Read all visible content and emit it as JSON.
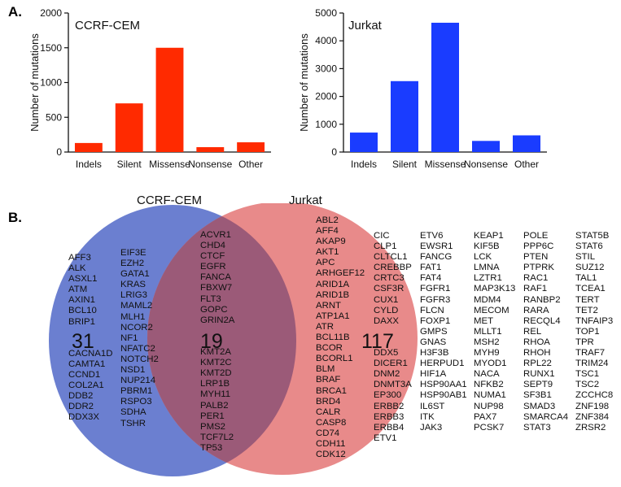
{
  "panel_a_label": "A.",
  "panel_b_label": "B.",
  "chart_data": [
    {
      "type": "bar",
      "title": "CCRF-CEM",
      "xlabel": "",
      "ylabel": "Number of mutations",
      "categories": [
        "Indels",
        "Silent",
        "Missense",
        "Nonsense",
        "Other"
      ],
      "values": [
        130,
        700,
        1500,
        70,
        140
      ],
      "ylim": [
        0,
        2000
      ],
      "yticks": [
        0,
        500,
        1000,
        1500,
        2000
      ],
      "color": "#ff2a00"
    },
    {
      "type": "bar",
      "title": "Jurkat",
      "xlabel": "",
      "ylabel": "Number of mutations",
      "categories": [
        "Indels",
        "Silent",
        "Missense",
        "Nonsense",
        "Other"
      ],
      "values": [
        700,
        2550,
        4650,
        400,
        600
      ],
      "ylim": [
        0,
        5000
      ],
      "yticks": [
        0,
        1000,
        2000,
        3000,
        4000,
        5000
      ],
      "color": "#1a3cff"
    }
  ],
  "venn": {
    "left_title": "CCRF-CEM",
    "right_title": "Jurkat",
    "left_color": "#6b7fd0",
    "right_color": "#e88a8a",
    "overlap_color": "#9b5a78",
    "left_only_count": "31",
    "shared_count": "19",
    "right_only_count": "117",
    "left_only_col1": [
      "AFF3",
      "ALK",
      "ASXL1",
      "ATM",
      "AXIN1",
      "BCL10",
      "BRIP1",
      "",
      "",
      "CACNA1D",
      "CAMTA1",
      "CCND1",
      "COL2A1",
      "DDB2",
      "DDR2",
      "DDX3X"
    ],
    "left_only_col2": [
      "EIF3E",
      "EZH2",
      "GATA1",
      "KRAS",
      "LRIG3",
      "MAML2",
      "MLH1",
      "NCOR2",
      "NF1",
      "NFATC2",
      "NOTCH2",
      "NSD1",
      "NUP214",
      "PBRM1",
      "RSPO3",
      "SDHA",
      "TSHR"
    ],
    "shared_col1": [
      "ACVR1",
      "CHD4",
      "CTCF",
      "EGFR",
      "FANCA",
      "FBXW7",
      "FLT3",
      "GOPC",
      "GRIN2A",
      "",
      "",
      "KMT2A",
      "KMT2C",
      "KMT2D",
      "LRP1B",
      "MYH11",
      "PALB2",
      "PER1",
      "PMS2",
      "TCF7L2",
      "TP53"
    ],
    "right_only_col1": [
      "ABL2",
      "AFF4",
      "AKAP9",
      "AKT1",
      "APC",
      "ARHGEF12",
      "ARID1A",
      "ARID1B",
      "ARNT",
      "ATP1A1",
      "ATR",
      "BCL11B",
      "BCOR",
      "BCORL1",
      "BLM",
      "BRAF",
      "BRCA1",
      "BRD4",
      "CALR",
      "CASP8",
      "CD74",
      "CDH11",
      "CDK12"
    ],
    "right_only_col2": [
      "CIC",
      "CLP1",
      "CLTCL1",
      "CREBBP",
      "CRTC3",
      "CSF3R",
      "CUX1",
      "CYLD",
      "DAXX",
      "",
      "",
      "DDX5",
      "DICER1",
      "DNM2",
      "DNMT3A",
      "EP300",
      "ERBB2",
      "ERBB3",
      "ERBB4",
      "ETV1"
    ],
    "right_only_col3": [
      "ETV6",
      "EWSR1",
      "FANCG",
      "FAT1",
      "FAT4",
      "FGFR1",
      "FGFR3",
      "FLCN",
      "FOXP1",
      "GMPS",
      "GNAS",
      "H3F3B",
      "HERPUD1",
      "HIF1A",
      "HSP90AA1",
      "HSP90AB1",
      "IL6ST",
      "ITK",
      "JAK3"
    ],
    "right_only_col4": [
      "KEAP1",
      "KIF5B",
      "LCK",
      "LMNA",
      "LZTR1",
      "MAP3K13",
      "MDM4",
      "MECOM",
      "MET",
      "MLLT1",
      "MSH2",
      "MYH9",
      "MYOD1",
      "NACA",
      "NFKB2",
      "NUMA1",
      "NUP98",
      "PAX7",
      "PCSK7"
    ],
    "right_only_col5": [
      "POLE",
      "PPP6C",
      "PTEN",
      "PTPRK",
      "RAC1",
      "RAF1",
      "RANBP2",
      "RARA",
      "RECQL4",
      "REL",
      "RHOA",
      "RHOH",
      "RPL22",
      "RUNX1",
      "SEPT9",
      "SF3B1",
      "SMAD3",
      "SMARCA4",
      "STAT3"
    ],
    "right_only_col6": [
      "STAT5B",
      "STAT6",
      "STIL",
      "SUZ12",
      "TAL1",
      "TCEA1",
      "TERT",
      "TET2",
      "TNFAIP3",
      "TOP1",
      "TPR",
      "TRAF7",
      "TRIM24",
      "TSC1",
      "TSC2",
      "ZCCHC8",
      "ZNF198",
      "ZNF384",
      "ZRSR2"
    ]
  }
}
